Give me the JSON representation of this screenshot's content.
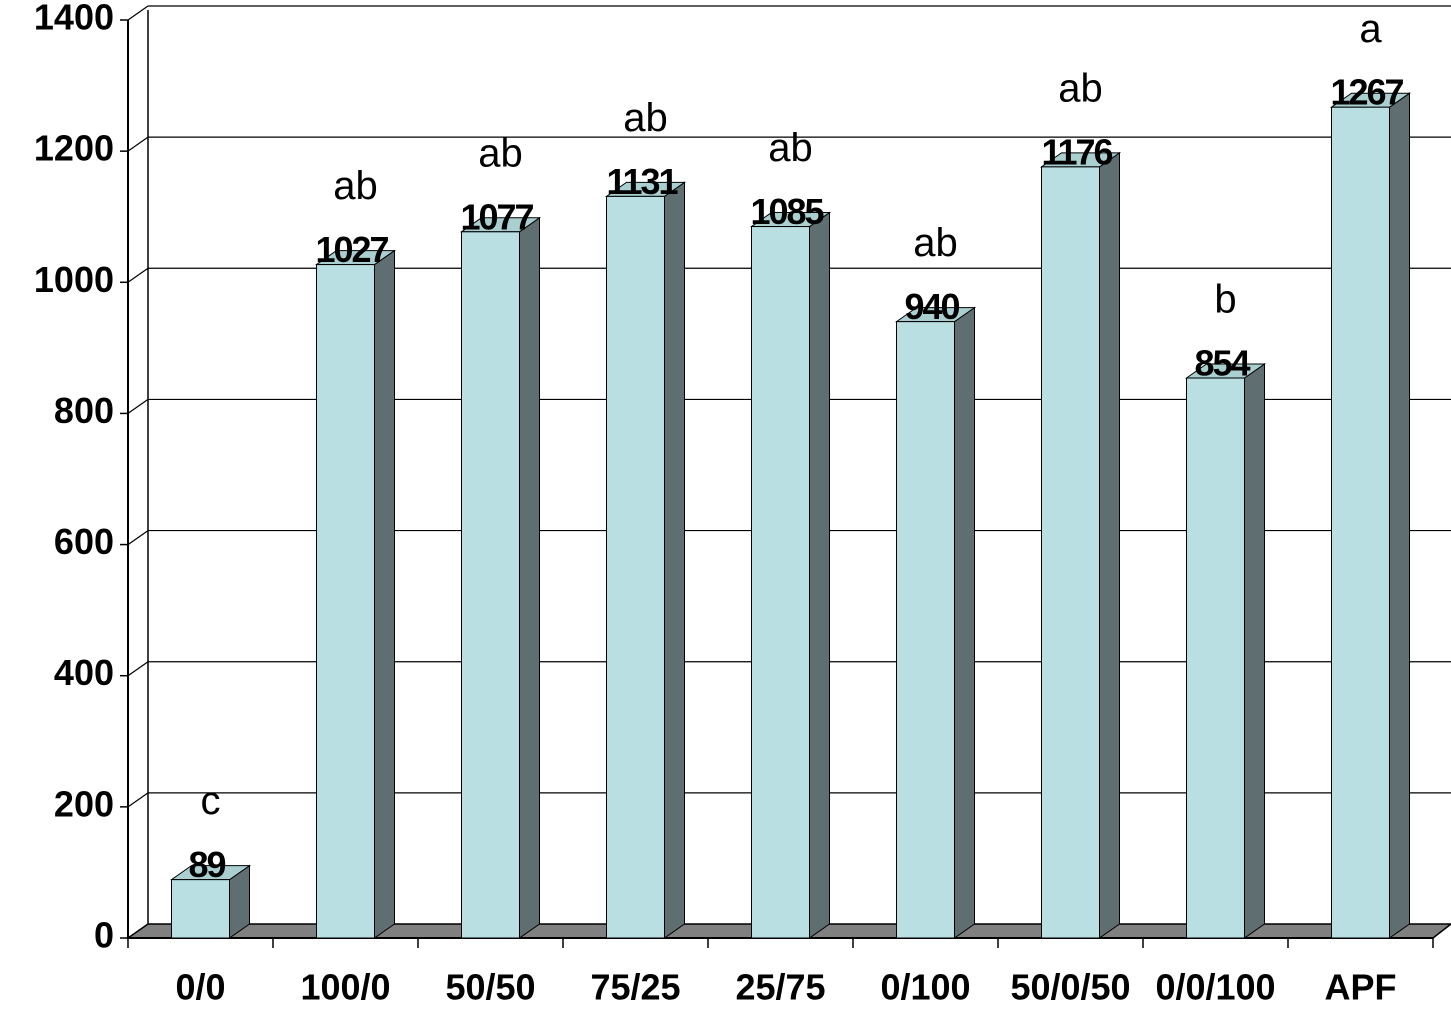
{
  "chart_data": {
    "type": "bar3d",
    "categories": [
      "0/0",
      "100/0",
      "50/50",
      "75/25",
      "25/75",
      "0/100",
      "50/0/50",
      "0/0/100",
      "APF"
    ],
    "values": [
      89,
      1027,
      1077,
      1131,
      1085,
      940,
      1176,
      854,
      1267
    ],
    "annotations": [
      "c",
      "ab",
      "ab",
      "ab",
      "ab",
      "ab",
      "ab",
      "b",
      "a"
    ],
    "color": "#b9dfe2",
    "ylim": [
      0,
      1400
    ],
    "yticks": [
      0,
      200,
      400,
      600,
      800,
      1000,
      1200,
      1400
    ],
    "grid": true
  }
}
